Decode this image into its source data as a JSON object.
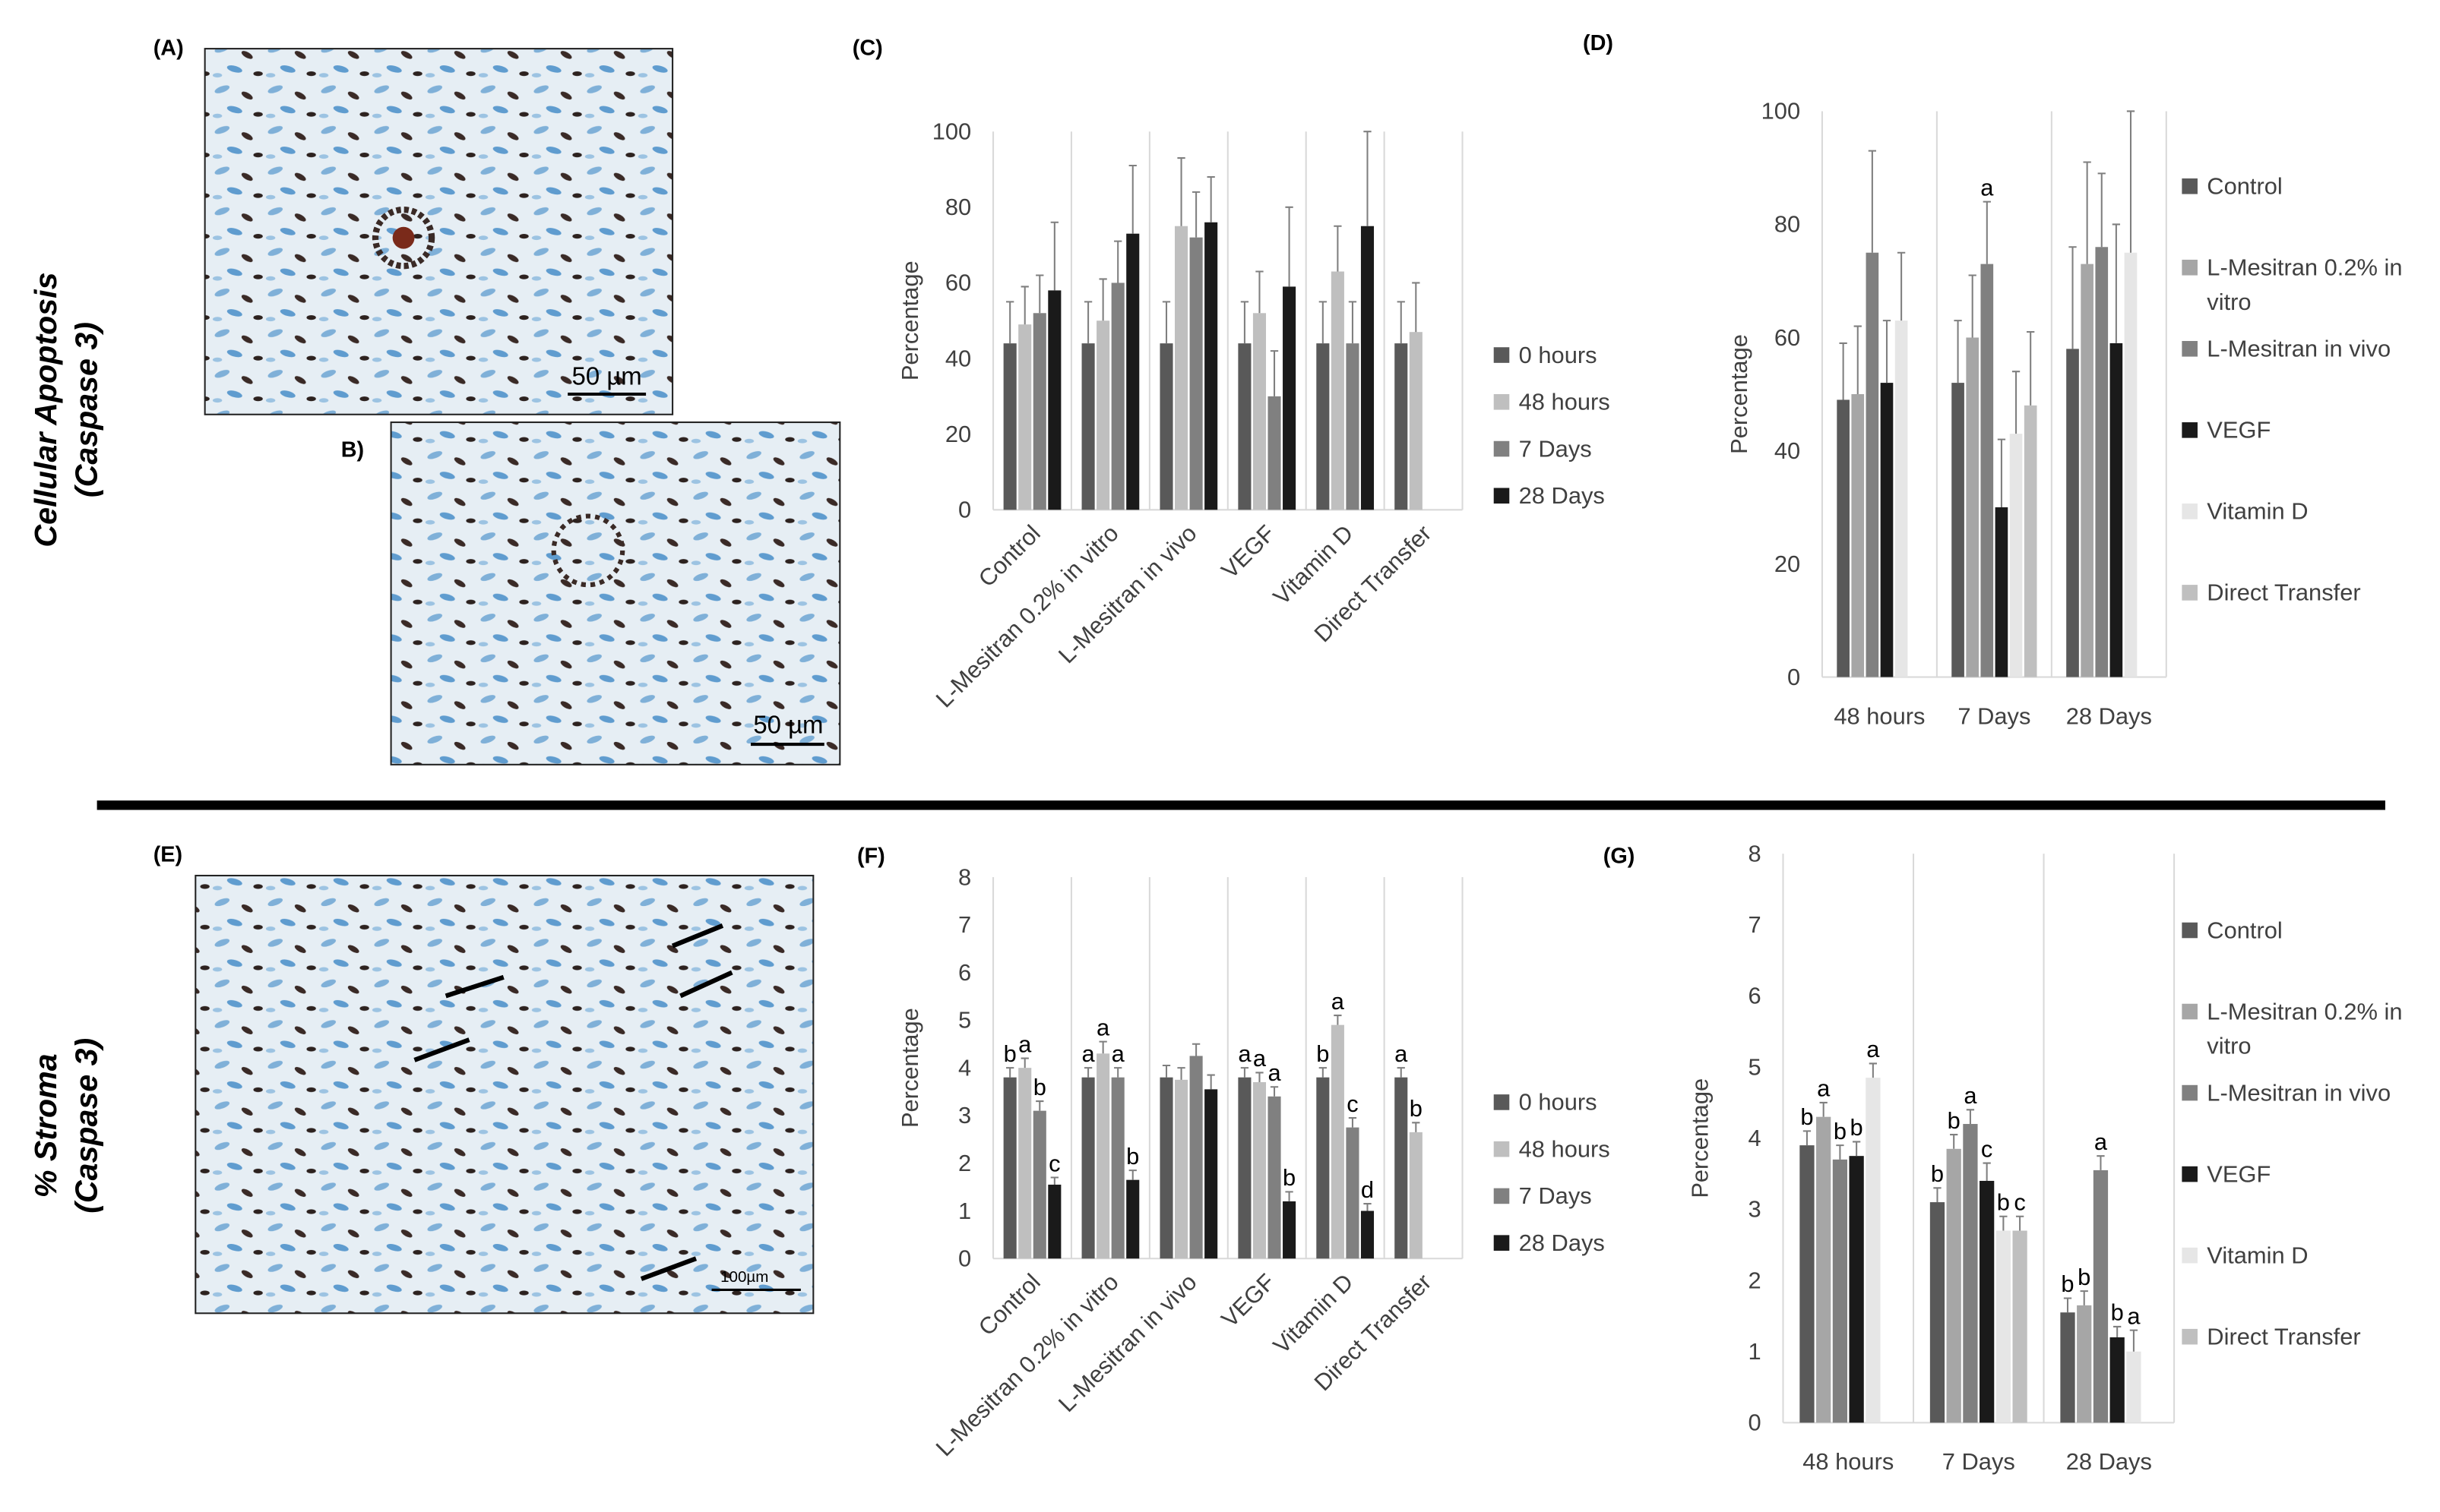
{
  "panel_labels": [
    "(A)",
    "B)",
    "(C)",
    "(D)",
    "(E)",
    "(F)",
    "(G)"
  ],
  "scale_bars": [
    "50 µm",
    "50 µm",
    "100µm"
  ],
  "row_titles": [
    [
      "Cellular Apoptosis",
      "(Caspase 3)"
    ],
    [
      "% Stroma",
      "(Caspase 3)"
    ]
  ],
  "chart_data": [
    {
      "type": "bar",
      "y_label": "Percentage",
      "categories": [
        "Control",
        "L-Mesitran 0.2% in vitro",
        "L-Mesitran in vivo",
        "VEGF",
        "Vitamin D",
        "Direct Transfer"
      ],
      "series": [
        {
          "name": "0 hours",
          "color": "#595959",
          "values": [
            44,
            44,
            44,
            44,
            44,
            44
          ],
          "errors": [
            11,
            11,
            11,
            11,
            11,
            11
          ]
        },
        {
          "name": "48 hours",
          "color": "#bfbfbf",
          "values": [
            49,
            50,
            75,
            52,
            63,
            47
          ],
          "errors": [
            10,
            11,
            18,
            11,
            12,
            13
          ]
        },
        {
          "name": "7 Days",
          "color": "#808080",
          "values": [
            52,
            60,
            72,
            30,
            44,
            null
          ],
          "errors": [
            10,
            11,
            12,
            12,
            11,
            null
          ]
        },
        {
          "name": "28 Days",
          "color": "#1a1a1a",
          "values": [
            58,
            73,
            76,
            59,
            75,
            null
          ],
          "errors": [
            18,
            18,
            12,
            21,
            25,
            null
          ]
        }
      ],
      "ylim": [
        0,
        100
      ],
      "yticks": [
        0,
        20,
        40,
        60,
        80,
        100
      ],
      "legend": "right"
    },
    {
      "type": "bar",
      "y_label": "Percentage",
      "categories": [
        "48 hours",
        "7 Days",
        "28 Days"
      ],
      "series": [
        {
          "name": "Control",
          "color": "#595959",
          "values": [
            49,
            52,
            58
          ],
          "errors": [
            10,
            11,
            18
          ]
        },
        {
          "name": "L-Mesitran 0.2% in vitro",
          "color": "#a6a6a6",
          "values": [
            50,
            60,
            73
          ],
          "errors": [
            12,
            11,
            18
          ]
        },
        {
          "name": "L-Mesitran in vivo",
          "color": "#808080",
          "values": [
            75,
            73,
            76
          ],
          "errors": [
            18,
            11,
            13
          ],
          "letters": [
            null,
            "a",
            null
          ]
        },
        {
          "name": "VEGF",
          "color": "#1a1a1a",
          "values": [
            52,
            30,
            59
          ],
          "errors": [
            11,
            12,
            21
          ]
        },
        {
          "name": "Vitamin D",
          "color": "#e6e6e6",
          "values": [
            63,
            43,
            75
          ],
          "errors": [
            12,
            11,
            25
          ]
        },
        {
          "name": "Direct Transfer",
          "color": "#bfbfbf",
          "values": [
            null,
            48,
            null
          ],
          "errors": [
            null,
            13,
            null
          ]
        }
      ],
      "ylim": [
        0,
        100
      ],
      "yticks": [
        0,
        20,
        40,
        60,
        80,
        100
      ],
      "legend": "right"
    },
    {
      "type": "bar",
      "y_label": "Percentage",
      "categories": [
        "Control",
        "L-Mesitran 0.2% in vitro",
        "L-Mesitran in vivo",
        "VEGF",
        "Vitamin D",
        "Direct Transfer"
      ],
      "series": [
        {
          "name": "0 hours",
          "color": "#595959",
          "values": [
            3.8,
            3.8,
            3.8,
            3.8,
            3.8,
            3.8
          ],
          "errors": [
            0.2,
            0.2,
            0.25,
            0.2,
            0.2,
            0.2
          ],
          "letters": [
            "b",
            "a",
            null,
            "a",
            "b",
            "a"
          ]
        },
        {
          "name": "48 hours",
          "color": "#bfbfbf",
          "values": [
            4.0,
            4.3,
            3.75,
            3.7,
            4.9,
            2.65
          ],
          "errors": [
            0.2,
            0.25,
            0.25,
            0.2,
            0.2,
            0.2
          ],
          "letters": [
            "a",
            "a",
            null,
            "a",
            "a",
            "b"
          ]
        },
        {
          "name": "7 Days",
          "color": "#808080",
          "values": [
            3.1,
            3.8,
            4.25,
            3.4,
            2.75,
            null
          ],
          "errors": [
            0.2,
            0.2,
            0.25,
            0.2,
            0.2,
            null
          ],
          "letters": [
            "b",
            "a",
            null,
            "a",
            "c",
            null
          ]
        },
        {
          "name": "28 Days",
          "color": "#1a1a1a",
          "values": [
            1.55,
            1.65,
            3.55,
            1.2,
            1.0,
            null
          ],
          "errors": [
            0.15,
            0.2,
            0.3,
            0.2,
            0.15,
            null
          ],
          "letters": [
            "c",
            "b",
            null,
            "b",
            "d",
            null
          ]
        }
      ],
      "ylim": [
        0,
        8
      ],
      "yticks": [
        0,
        1,
        2,
        3,
        4,
        5,
        6,
        7,
        8
      ],
      "legend": "right"
    },
    {
      "type": "bar",
      "y_label": "Percentage",
      "categories": [
        "48 hours",
        "7 Days",
        "28 Days"
      ],
      "series": [
        {
          "name": "Control",
          "color": "#595959",
          "values": [
            3.9,
            3.1,
            1.55
          ],
          "errors": [
            0.2,
            0.2,
            0.2
          ],
          "letters": [
            "b",
            "b",
            "b"
          ]
        },
        {
          "name": "L-Mesitran 0.2% in vitro",
          "color": "#a6a6a6",
          "values": [
            4.3,
            3.85,
            1.65
          ],
          "errors": [
            0.2,
            0.2,
            0.2
          ],
          "letters": [
            "a",
            "b",
            "b"
          ]
        },
        {
          "name": "L-Mesitran in vivo",
          "color": "#808080",
          "values": [
            3.7,
            4.2,
            3.55
          ],
          "errors": [
            0.2,
            0.2,
            0.2
          ],
          "letters": [
            "b",
            "a",
            "a"
          ]
        },
        {
          "name": "VEGF",
          "color": "#1a1a1a",
          "values": [
            3.75,
            3.4,
            1.2
          ],
          "errors": [
            0.2,
            0.25,
            0.15
          ],
          "letters": [
            "b",
            "c",
            "b"
          ]
        },
        {
          "name": "Vitamin D",
          "color": "#e6e6e6",
          "values": [
            4.85,
            2.7,
            1.0
          ],
          "errors": [
            0.2,
            0.2,
            0.3
          ],
          "letters": [
            "a",
            "b",
            "a"
          ]
        },
        {
          "name": "Direct Transfer",
          "color": "#bfbfbf",
          "values": [
            null,
            2.7,
            null
          ],
          "errors": [
            null,
            0.2,
            null
          ],
          "letters": [
            null,
            "c",
            null
          ]
        }
      ],
      "ylim": [
        0,
        8
      ],
      "yticks": [
        0,
        1,
        2,
        3,
        4,
        5,
        6,
        7,
        8
      ],
      "legend": "right"
    }
  ]
}
